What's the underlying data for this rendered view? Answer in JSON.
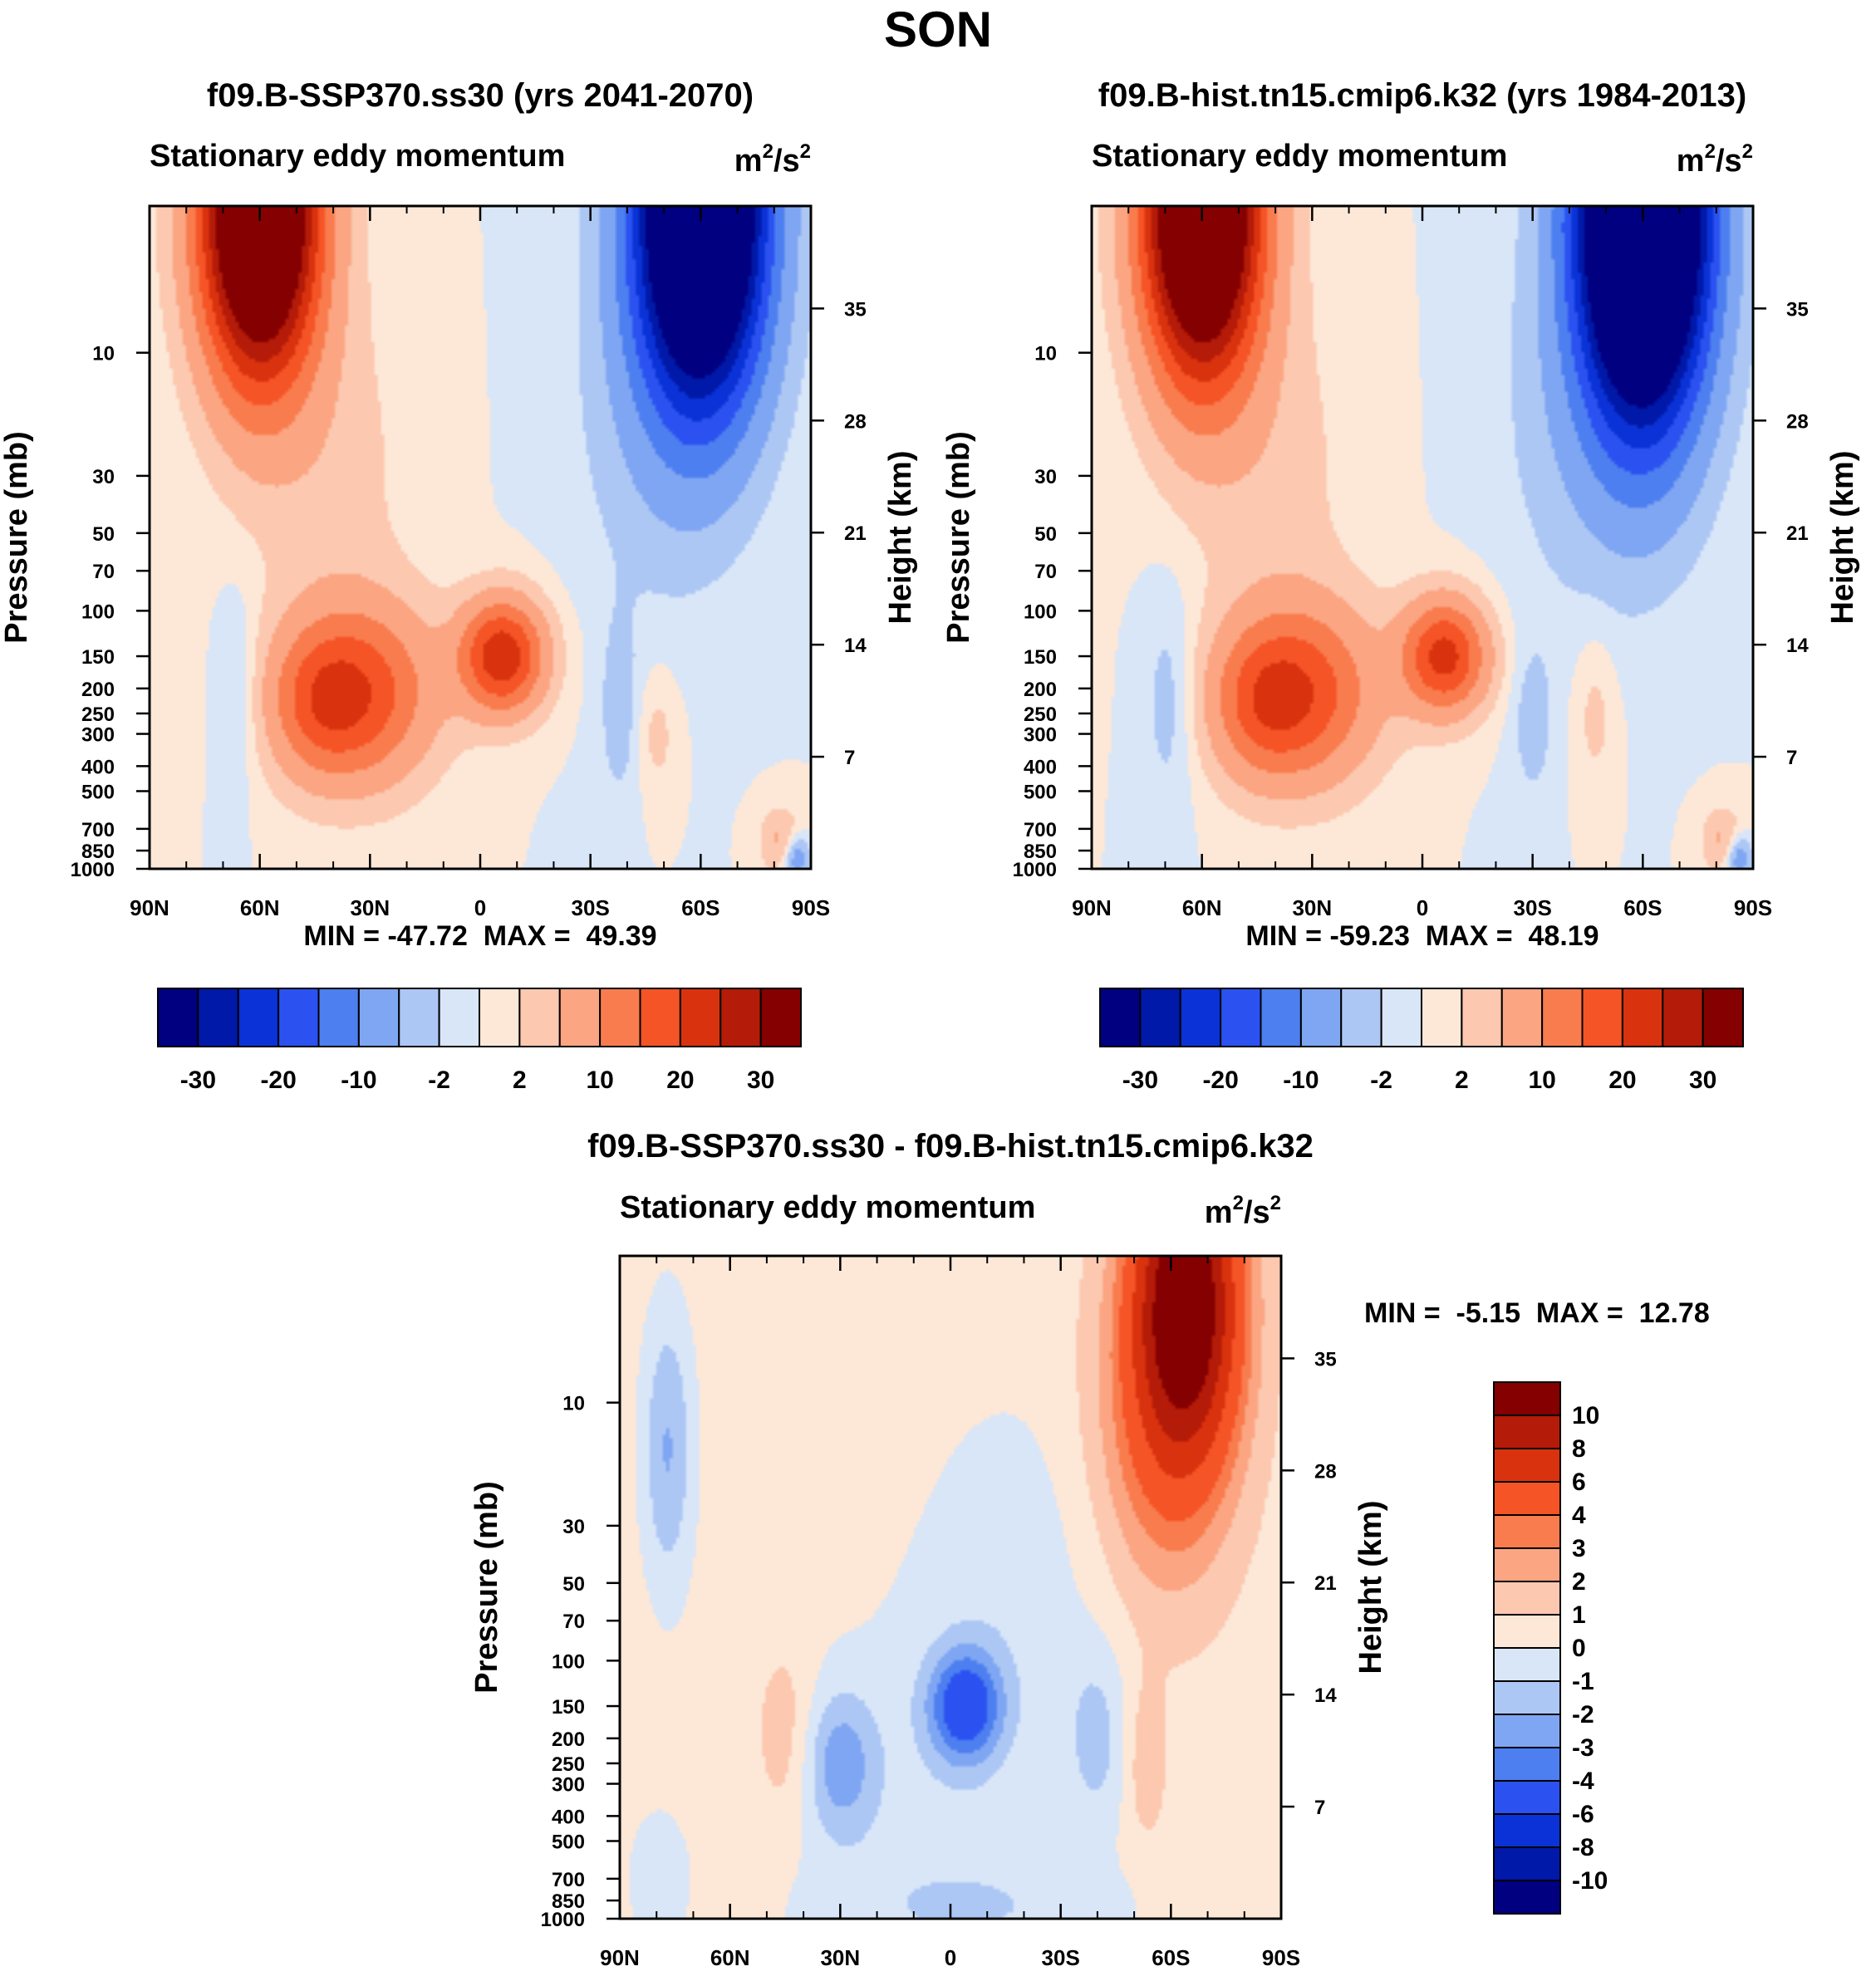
{
  "title": "SON",
  "colors": {
    "axis": "#000000",
    "background": "#ffffff"
  },
  "panels": [
    {
      "name": "panel-ssp370",
      "title": "f09.B-SSP370.ss30 (yrs 2041-2070)",
      "left_label": "Stationary eddy momentum",
      "units": {
        "base": "m",
        "exp1": "2",
        "sep": "/s",
        "exp2": "2"
      },
      "min_max": "MIN = -47.72  MAX =  49.39",
      "colorbar": "panel_bar"
    },
    {
      "name": "panel-hist",
      "title": "f09.B-hist.tn15.cmip6.k32 (yrs 1984-2013)",
      "left_label": "Stationary eddy momentum",
      "units": {
        "base": "m",
        "exp1": "2",
        "sep": "/s",
        "exp2": "2"
      },
      "min_max": "MIN = -59.23  MAX =  48.19",
      "colorbar": "panel_bar"
    },
    {
      "name": "panel-diff",
      "title": "f09.B-SSP370.ss30 - f09.B-hist.tn15.cmip6.k32",
      "left_label": "Stationary eddy momentum",
      "units": {
        "base": "m",
        "exp1": "2",
        "sep": "/s",
        "exp2": "2"
      },
      "min_max": "MIN =  -5.15  MAX =  12.78",
      "colorbar": "diff_bar"
    }
  ],
  "chart_data": [
    {
      "type": "heatmap",
      "subplot": "f09.B-SSP370.ss30 (yrs 2041-2070)",
      "subtitle": "Stationary eddy momentum",
      "units": "m^2/s^2",
      "xlabel": "",
      "ylabel": "Pressure (mb)",
      "ylabel_right": "Height (km)",
      "xlim": [
        90,
        -90
      ],
      "ylim_pressure": [
        1000,
        2.7
      ],
      "x_tick_values": [
        90,
        60,
        30,
        0,
        -30,
        -60,
        -90
      ],
      "x_tick_labels": [
        "90N",
        "60N",
        "30N",
        "0",
        "30S",
        "60S",
        "90S"
      ],
      "y_tick_values": [
        10,
        30,
        50,
        70,
        100,
        150,
        200,
        250,
        300,
        400,
        500,
        700,
        850,
        1000
      ],
      "y_tick_labels": [
        "10",
        "30",
        "50",
        "70",
        "100",
        "150",
        "200",
        "250",
        "300",
        "400",
        "500",
        "700",
        "850",
        "1000"
      ],
      "height_tick_values": [
        35,
        28,
        21,
        14,
        7
      ],
      "height_tick_labels": [
        "35",
        "28",
        "21",
        "14",
        "7"
      ],
      "min": -47.72,
      "max": 49.39,
      "features": [
        {
          "lat": 60,
          "p": 3,
          "value": 40,
          "note": "positive stratospheric maximum"
        },
        {
          "lat": -60,
          "p": 3,
          "value": -40,
          "note": "negative stratospheric minimum"
        },
        {
          "lat": 33,
          "p": 200,
          "value": 15,
          "note": "upper-tropospheric positive maximum"
        },
        {
          "lat": -6,
          "p": 150,
          "value": 22,
          "note": "tropical positive maximum"
        }
      ]
    },
    {
      "type": "heatmap",
      "subplot": "f09.B-hist.tn15.cmip6.k32 (yrs 1984-2013)",
      "subtitle": "Stationary eddy momentum",
      "units": "m^2/s^2",
      "xlabel": "",
      "ylabel": "Pressure (mb)",
      "ylabel_right": "Height (km)",
      "xlim": [
        90,
        -90
      ],
      "ylim_pressure": [
        1000,
        2.7
      ],
      "x_tick_values": [
        90,
        60,
        30,
        0,
        -30,
        -60,
        -90
      ],
      "x_tick_labels": [
        "90N",
        "60N",
        "30N",
        "0",
        "30S",
        "60S",
        "90S"
      ],
      "y_tick_values": [
        10,
        30,
        50,
        70,
        100,
        150,
        200,
        250,
        300,
        400,
        500,
        700,
        850,
        1000
      ],
      "y_tick_labels": [
        "10",
        "30",
        "50",
        "70",
        "100",
        "150",
        "200",
        "250",
        "300",
        "400",
        "500",
        "700",
        "850",
        "1000"
      ],
      "height_tick_values": [
        35,
        28,
        21,
        14,
        7
      ],
      "height_tick_labels": [
        "35",
        "28",
        "21",
        "14",
        "7"
      ],
      "min": -59.23,
      "max": 48.19,
      "features": [
        {
          "lat": 60,
          "p": 3,
          "value": 40,
          "note": "positive stratospheric maximum"
        },
        {
          "lat": -60,
          "p": 3,
          "value": -45,
          "note": "negative stratospheric minimum"
        },
        {
          "lat": 33,
          "p": 200,
          "value": 15,
          "note": "upper-tropospheric positive maximum"
        },
        {
          "lat": -6,
          "p": 150,
          "value": 20,
          "note": "tropical positive maximum"
        }
      ]
    },
    {
      "type": "heatmap",
      "subplot": "f09.B-SSP370.ss30 - f09.B-hist.tn15.cmip6.k32",
      "subtitle": "Stationary eddy momentum",
      "units": "m^2/s^2",
      "xlabel": "",
      "ylabel": "Pressure (mb)",
      "ylabel_right": "Height (km)",
      "xlim": [
        90,
        -90
      ],
      "ylim_pressure": [
        1000,
        2.7
      ],
      "x_tick_values": [
        90,
        60,
        30,
        0,
        -30,
        -60,
        -90
      ],
      "x_tick_labels": [
        "90N",
        "60N",
        "30N",
        "0",
        "30S",
        "60S",
        "90S"
      ],
      "y_tick_values": [
        10,
        30,
        50,
        70,
        100,
        150,
        200,
        250,
        300,
        400,
        500,
        700,
        850,
        1000
      ],
      "y_tick_labels": [
        "10",
        "30",
        "50",
        "70",
        "100",
        "150",
        "200",
        "250",
        "300",
        "400",
        "500",
        "700",
        "850",
        "1000"
      ],
      "height_tick_values": [
        35,
        28,
        21,
        14,
        7
      ],
      "height_tick_labels": [
        "35",
        "28",
        "21",
        "14",
        "7"
      ],
      "min": -5.15,
      "max": 12.78,
      "features": [
        {
          "lat": -64,
          "p": 4,
          "value": 11,
          "note": "positive stratospheric maximum"
        },
        {
          "lat": -4,
          "p": 150,
          "value": -4.5,
          "note": "tropical negative minimum"
        },
        {
          "lat": 77,
          "p": 15,
          "value": -1.5,
          "note": "weak negative region"
        },
        {
          "lat": 30,
          "p": 250,
          "value": -2,
          "note": "weak negative region"
        }
      ]
    }
  ],
  "panel_bar": {
    "orientation": "horizontal",
    "colors": [
      "#000080",
      "#0019a8",
      "#0a32d6",
      "#2b52f0",
      "#4d7ff0",
      "#7fa6f2",
      "#adc7f5",
      "#d8e6f8",
      "#fde8d8",
      "#fcc8b0",
      "#fba582",
      "#f97c4e",
      "#f55426",
      "#d9320e",
      "#b41b08",
      "#850000"
    ],
    "labels": [
      "-30",
      "-20",
      "-10",
      "-2",
      "2",
      "10",
      "20",
      "30"
    ],
    "boundaries": [
      -35,
      -30,
      -25,
      -20,
      -15,
      -10,
      -5,
      -2,
      0,
      2,
      5,
      10,
      15,
      20,
      25,
      30,
      35
    ]
  },
  "diff_bar": {
    "orientation": "vertical",
    "colors": [
      "#850000",
      "#b41b08",
      "#d9320e",
      "#f55426",
      "#f97c4e",
      "#fba582",
      "#fcc8b0",
      "#fde8d8",
      "#d8e6f8",
      "#adc7f5",
      "#7fa6f2",
      "#4d7ff0",
      "#2b52f0",
      "#0a32d6",
      "#0019a8",
      "#000080"
    ],
    "labels": [
      "10",
      "8",
      "6",
      "4",
      "3",
      "2",
      "1",
      "0",
      "-1",
      "-2",
      "-3",
      "-4",
      "-6",
      "-8",
      "-10"
    ],
    "boundaries": [
      12,
      10,
      8,
      6,
      4,
      3,
      2,
      1,
      0,
      -1,
      -2,
      -3,
      -4,
      -6,
      -8,
      -10,
      -12
    ]
  }
}
